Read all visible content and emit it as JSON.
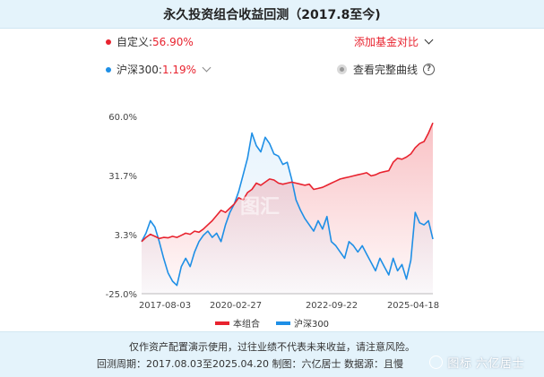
{
  "title": "永久投资组合收益回测（2017.8至今)",
  "series_row": {
    "custom_label": "自定义:",
    "custom_value": "56.90%",
    "index_label": "沪深300:",
    "index_value": "1.19%",
    "add_fund_label": "添加基金对比",
    "full_curve_label": "查看完整曲线",
    "help_glyph": "?"
  },
  "chart_data": {
    "type": "line",
    "x_ticks": [
      "2017-08-03",
      "2020-02-27",
      "2022-09-22",
      "2025-04-18"
    ],
    "y_ticks": [
      "60.0%",
      "31.7%",
      "3.3%",
      "-25.0%"
    ],
    "ylim": [
      -25.0,
      60.0
    ],
    "grid": false,
    "legend": "bottom-center",
    "series": [
      {
        "name": "本组合",
        "color": "#e8232f",
        "values": [
          0.0,
          2.0,
          3.5,
          2.5,
          1.5,
          2.0,
          1.8,
          2.5,
          2.0,
          3.0,
          4.0,
          3.5,
          5.0,
          4.5,
          6.0,
          8.0,
          10.0,
          12.5,
          15.0,
          14.0,
          16.0,
          18.0,
          21.0,
          20.0,
          23.5,
          25.0,
          28.0,
          27.0,
          28.5,
          30.0,
          29.5,
          28.0,
          27.5,
          28.0,
          28.5,
          28.0,
          27.5,
          27.0,
          27.5,
          25.0,
          25.5,
          26.0,
          27.0,
          28.0,
          29.0,
          30.0,
          30.5,
          31.0,
          31.5,
          32.0,
          32.5,
          33.0,
          31.5,
          32.0,
          33.0,
          33.5,
          34.0,
          38.0,
          40.0,
          39.5,
          40.5,
          42.0,
          45.0,
          47.0,
          48.0,
          52.0,
          56.9
        ]
      },
      {
        "name": "沪深300",
        "color": "#1e8fe6",
        "values": [
          0.0,
          4.0,
          10.0,
          7.0,
          0.0,
          -8.0,
          -15.0,
          -19.0,
          -21.0,
          -12.0,
          -8.0,
          -12.0,
          -5.0,
          0.0,
          3.0,
          5.0,
          2.0,
          4.0,
          0.0,
          8.0,
          14.0,
          18.0,
          24.0,
          32.0,
          40.0,
          52.0,
          46.0,
          43.0,
          50.0,
          47.0,
          42.0,
          41.0,
          37.0,
          38.0,
          30.0,
          20.0,
          15.0,
          11.0,
          8.0,
          5.0,
          10.0,
          6.0,
          12.0,
          0.0,
          -2.0,
          -5.0,
          -8.0,
          0.0,
          -2.0,
          -5.0,
          -2.0,
          -6.0,
          -10.0,
          -14.0,
          -8.0,
          -12.0,
          -16.0,
          -8.0,
          -14.0,
          -11.0,
          -18.0,
          -9.0,
          14.0,
          9.0,
          8.0,
          10.0,
          1.19
        ]
      }
    ]
  },
  "watermark_text": "图标 六亿居士",
  "chart_watermark": "图汇",
  "footer": {
    "disclaimer": "仅作资产配置演示使用，过往业绩不代表未来收益，请注意风险。",
    "period_line": "回测周期：2017.08.03至2025.04.20  制图：六亿居士  数据源：且慢"
  },
  "colors": {
    "accent_red": "#e8232f",
    "accent_blue": "#1e8fe6",
    "panel_bg": "#e4f3fb"
  }
}
